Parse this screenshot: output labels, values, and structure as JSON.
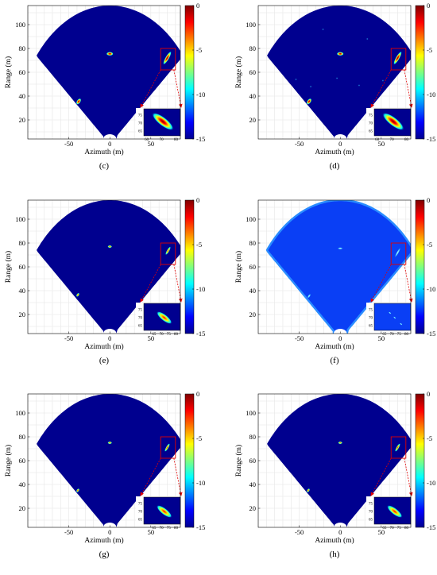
{
  "panels": [
    {
      "caption": "(c)",
      "style": "sharp",
      "background_color": "#00008f",
      "targets": [
        {
          "azimuth": 0,
          "range": 75.5
        },
        {
          "azimuth": -38,
          "range": 35.5
        },
        {
          "azimuth": 70,
          "range": 72
        }
      ],
      "zoom_targets": [
        {
          "azimuth": 71,
          "range": 71
        }
      ],
      "noise_points": []
    },
    {
      "caption": "(d)",
      "style": "sharp",
      "background_color": "#00008f",
      "targets": [
        {
          "azimuth": 0,
          "range": 75.5
        },
        {
          "azimuth": -38,
          "range": 35.5
        },
        {
          "azimuth": 70,
          "range": 72
        }
      ],
      "zoom_targets": [
        {
          "azimuth": 71,
          "range": 71
        }
      ],
      "noise_points": [
        {
          "azimuth": -21,
          "range": 96
        },
        {
          "azimuth": 33,
          "range": 88
        },
        {
          "azimuth": -54,
          "range": 54
        },
        {
          "azimuth": -36,
          "range": 48
        },
        {
          "azimuth": -4,
          "range": 55
        },
        {
          "azimuth": 52,
          "range": 53
        },
        {
          "azimuth": 23,
          "range": 49
        }
      ]
    },
    {
      "caption": "(e)",
      "style": "small",
      "background_color": "#00008f",
      "targets": [
        {
          "azimuth": 0,
          "range": 77
        },
        {
          "azimuth": -39,
          "range": 36.5
        },
        {
          "azimuth": 71,
          "range": 73.5
        }
      ],
      "zoom_targets": [
        {
          "azimuth": 72,
          "range": 70
        }
      ],
      "noise_points": []
    },
    {
      "caption": "(f)",
      "style": "diffuse",
      "background_color": "#0a3ff5",
      "targets": [
        {
          "azimuth": 0,
          "range": 75.5
        },
        {
          "azimuth": -38,
          "range": 35.5
        },
        {
          "azimuth": 70,
          "range": 72
        }
      ],
      "zoom_targets": [
        {
          "azimuth": 72,
          "range": 70
        }
      ],
      "noise_points": []
    },
    {
      "caption": "(g)",
      "style": "small",
      "background_color": "#00008f",
      "targets": [
        {
          "azimuth": 0,
          "range": 75
        },
        {
          "azimuth": -39,
          "range": 35
        },
        {
          "azimuth": 70,
          "range": 71
        }
      ],
      "zoom_targets": [
        {
          "azimuth": 72,
          "range": 70
        }
      ],
      "noise_points": []
    },
    {
      "caption": "(h)",
      "style": "small",
      "background_color": "#00008f",
      "targets": [
        {
          "azimuth": 0,
          "range": 75
        },
        {
          "azimuth": -39,
          "range": 35
        },
        {
          "azimuth": 70,
          "range": 71
        }
      ],
      "zoom_targets": [
        {
          "azimuth": 72,
          "range": 70
        }
      ],
      "noise_points": []
    }
  ],
  "chart_data": {
    "type": "heatmap",
    "xlabel": "Azimuth (m)",
    "ylabel": "Range (m)",
    "xlim": [
      -100,
      86
    ],
    "ylim": [
      4,
      116
    ],
    "x_ticks": [
      -50,
      0,
      50
    ],
    "y_ticks": [
      20,
      40,
      60,
      80,
      100
    ],
    "grid": true,
    "colorbar": {
      "ticks": [
        0,
        -5,
        -10,
        -15
      ],
      "range": [
        -15,
        0
      ],
      "colormap": "jet"
    },
    "sector": {
      "max_range": 116,
      "edge_slope": 0.83,
      "edge_intercept": -0.5,
      "min_range_bump": 8
    },
    "zoom_box": {
      "xlim": [
        62,
        80
      ],
      "ylim": [
        62,
        80
      ]
    },
    "zoom_inset": {
      "x_ticks": [
        60,
        70,
        80
      ],
      "y_ticks": [
        65,
        70,
        75
      ],
      "x_ticks_alt": [
        65,
        70,
        75,
        80
      ],
      "xlim": [
        58,
        83
      ],
      "ylim": [
        62,
        79
      ]
    },
    "point_targets_shown_per_panel": 3
  }
}
